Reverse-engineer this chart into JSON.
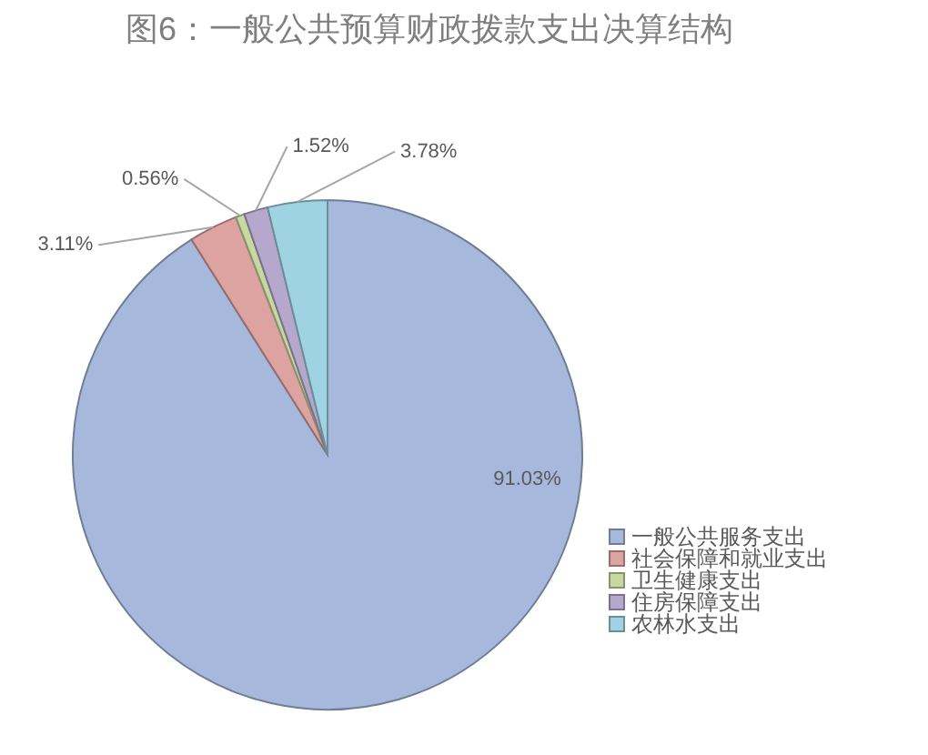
{
  "chart_data": {
    "type": "pie",
    "title": "图6：一般公共预算财政拨款支出决算结构",
    "categories": [
      "一般公共服务支出",
      "社会保障和就业支出",
      "卫生健康支出",
      "住房保障支出",
      "农林水支出"
    ],
    "values": [
      91.03,
      3.11,
      0.56,
      1.52,
      3.78
    ],
    "colors": [
      "#a6b9dc",
      "#dca3a1",
      "#c6d9a1",
      "#b5a8cc",
      "#a0d3e2"
    ],
    "value_labels": [
      "91.03%",
      "3.11%",
      "0.56%",
      "1.52%",
      "3.78%"
    ],
    "legend": "bottom right"
  }
}
